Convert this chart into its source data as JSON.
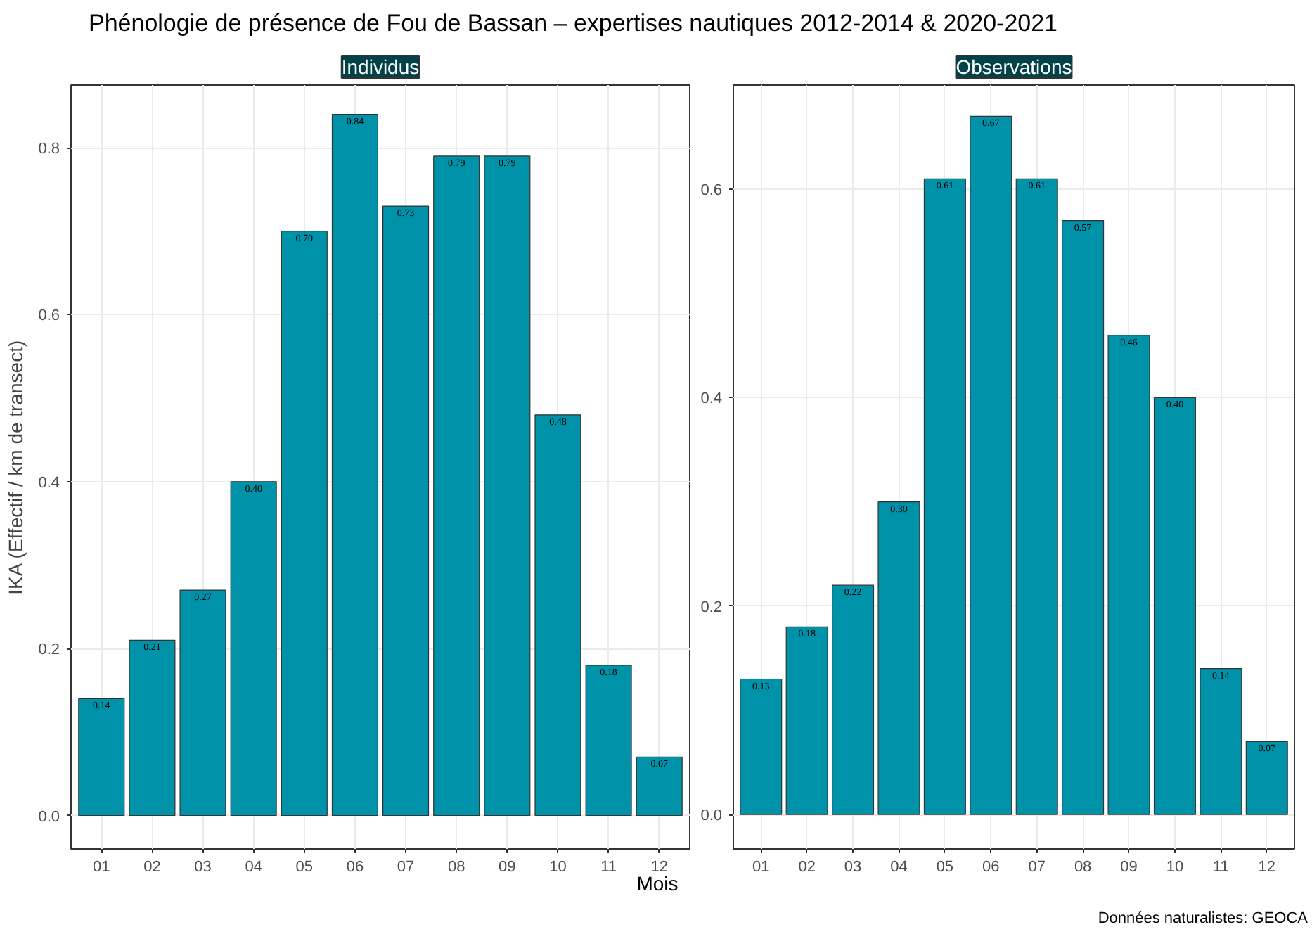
{
  "chart_data": [
    {
      "type": "bar",
      "title": "Phénologie de présence de Fou de Bassan – expertises nautiques 2012-2014 & 2020-2021",
      "subtitle": "Individus",
      "ylabel": "IKA (Effectif / km de transect)",
      "categories": [
        "01",
        "02",
        "03",
        "04",
        "05",
        "06",
        "07",
        "08",
        "09",
        "10",
        "11",
        "12"
      ],
      "values": [
        0.14,
        0.21,
        0.27,
        0.4,
        0.7,
        0.84,
        0.73,
        0.79,
        0.79,
        0.48,
        0.18,
        0.07
      ],
      "value_labels": [
        "0.14",
        "0.21",
        "0.27",
        "0.40",
        "0.70",
        "0.84",
        "0.73",
        "0.79",
        "0.79",
        "0.48",
        "0.18",
        "0.07"
      ],
      "color": "#0092a8",
      "ylim": [
        -0.04,
        0.875
      ],
      "yticks": [
        {
          "value": 0,
          "label": "0.0"
        },
        {
          "value": 0.2,
          "label": "0.2"
        },
        {
          "value": 0.4,
          "label": "0.4"
        },
        {
          "value": 0.6,
          "label": "0.6"
        },
        {
          "value": 0.8,
          "label": "0.8"
        }
      ],
      "grid": true
    },
    {
      "type": "bar",
      "subtitle": "Observations",
      "xlabel": "Mois",
      "categories": [
        "01",
        "02",
        "03",
        "04",
        "05",
        "06",
        "07",
        "08",
        "09",
        "10",
        "11",
        "12"
      ],
      "values": [
        0.13,
        0.18,
        0.22,
        0.3,
        0.61,
        0.67,
        0.61,
        0.57,
        0.46,
        0.4,
        0.14,
        0.07
      ],
      "value_labels": [
        "0.13",
        "0.18",
        "0.22",
        "0.30",
        "0.61",
        "0.67",
        "0.61",
        "0.57",
        "0.46",
        "0.40",
        "0.14",
        "0.07"
      ],
      "color": "#0092a8",
      "ylim": [
        -0.033,
        0.7
      ],
      "yticks": [
        {
          "value": 0,
          "label": "0.0"
        },
        {
          "value": 0.2,
          "label": "0.2"
        },
        {
          "value": 0.4,
          "label": "0.4"
        },
        {
          "value": 0.6,
          "label": "0.6"
        }
      ],
      "grid": true,
      "annotations": [
        "Données naturalistes: GEOCA"
      ]
    }
  ]
}
